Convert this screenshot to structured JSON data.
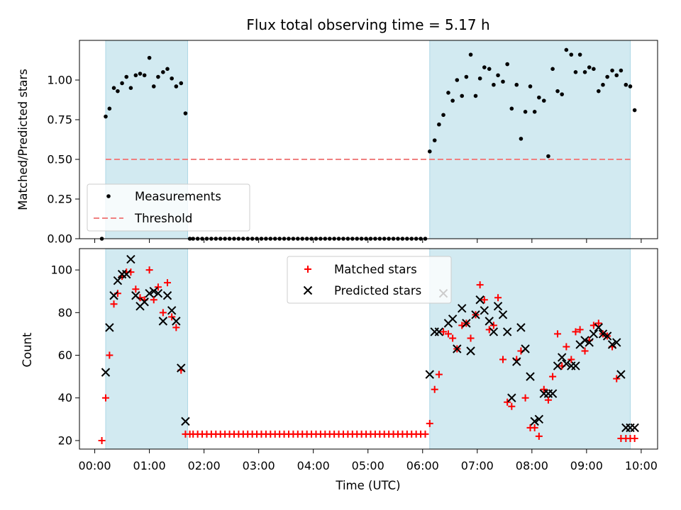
{
  "chart_data": {
    "type": "scatter",
    "title": "Flux total observing time = 5.17 h",
    "xlabel": "Time (UTC)",
    "x_unit": "hours UTC",
    "xlim": [
      -0.28,
      10.3
    ],
    "xticks": [
      0,
      1,
      2,
      3,
      4,
      5,
      6,
      7,
      8,
      9,
      10
    ],
    "xtick_labels": [
      "00:00",
      "01:00",
      "02:00",
      "03:00",
      "04:00",
      "05:00",
      "06:00",
      "07:00",
      "08:00",
      "09:00",
      "10:00"
    ],
    "shaded_intervals": [
      [
        0.2,
        1.7
      ],
      [
        6.13,
        9.8
      ]
    ],
    "shade_color": "#add8e6",
    "panels": [
      {
        "id": "ratio",
        "ylabel": "Matched/Predicted stars",
        "ylim": [
          0,
          1.25
        ],
        "yticks": [
          0.0,
          0.25,
          0.5,
          0.75,
          1.0
        ],
        "ytick_labels": [
          "0.00",
          "0.25",
          "0.50",
          "0.75",
          "1.00"
        ],
        "legend_position": "lower-left",
        "series": [
          {
            "name": "Measurements",
            "marker": "dot",
            "color": "#000000",
            "x": [
              0.13,
              0.2,
              0.27,
              0.35,
              0.42,
              0.5,
              0.58,
              0.66,
              0.75,
              0.83,
              0.91,
              1.0,
              1.08,
              1.16,
              1.25,
              1.33,
              1.41,
              1.49,
              1.58,
              1.66,
              1.74,
              6.13,
              6.22,
              6.3,
              6.38,
              6.47,
              6.55,
              6.63,
              6.72,
              6.8,
              6.88,
              6.97,
              7.05,
              7.13,
              7.22,
              7.3,
              7.38,
              7.47,
              7.55,
              7.63,
              7.72,
              7.8,
              7.88,
              7.97,
              8.05,
              8.13,
              8.22,
              8.3,
              8.38,
              8.47,
              8.55,
              8.63,
              8.72,
              8.8,
              8.88,
              8.97,
              9.05,
              9.13,
              9.22,
              9.3,
              9.38,
              9.47,
              9.55,
              9.63,
              9.72,
              9.8,
              9.88
            ],
            "y": [
              0.0,
              0.77,
              0.82,
              0.95,
              0.93,
              0.98,
              1.02,
              0.95,
              1.03,
              1.04,
              1.03,
              1.14,
              0.96,
              1.02,
              1.05,
              1.07,
              1.01,
              0.96,
              0.98,
              0.79,
              0.0,
              0.55,
              0.62,
              0.72,
              0.78,
              0.92,
              0.87,
              1.0,
              0.9,
              1.02,
              1.16,
              0.9,
              1.01,
              1.08,
              1.07,
              0.97,
              1.03,
              0.99,
              1.1,
              0.82,
              0.97,
              0.63,
              0.8,
              0.96,
              0.8,
              0.89,
              0.87,
              0.52,
              1.07,
              0.93,
              0.91,
              1.19,
              1.16,
              1.05,
              1.16,
              1.05,
              1.08,
              1.07,
              0.93,
              0.97,
              1.02,
              1.06,
              1.03,
              1.06,
              0.97,
              0.96,
              0.81
            ],
            "zero_run": {
              "from": 1.8,
              "to": 6.05,
              "step": 0.0833,
              "y": 0.0
            }
          },
          {
            "name": "Threshold",
            "marker": "dashed-line",
            "color": "#f08080",
            "x": [
              0.2,
              9.8
            ],
            "y": [
              0.5,
              0.5
            ]
          }
        ]
      },
      {
        "id": "count",
        "ylabel": "Count",
        "ylim": [
          16,
          110
        ],
        "yticks": [
          20,
          40,
          60,
          80,
          100
        ],
        "ytick_labels": [
          "20",
          "40",
          "60",
          "80",
          "100"
        ],
        "legend_position": "top-center",
        "series": [
          {
            "name": "Matched stars",
            "marker": "plus",
            "color": "#ff0000",
            "x": [
              0.13,
              0.2,
              0.27,
              0.35,
              0.42,
              0.5,
              0.58,
              0.66,
              0.75,
              0.83,
              0.91,
              1.0,
              1.08,
              1.16,
              1.25,
              1.33,
              1.41,
              1.49,
              1.58,
              1.66,
              1.74,
              6.13,
              6.22,
              6.3,
              6.38,
              6.47,
              6.55,
              6.63,
              6.72,
              6.8,
              6.88,
              6.97,
              7.05,
              7.13,
              7.22,
              7.3,
              7.38,
              7.47,
              7.55,
              7.63,
              7.72,
              7.8,
              7.88,
              7.97,
              8.05,
              8.13,
              8.22,
              8.3,
              8.38,
              8.47,
              8.55,
              8.63,
              8.72,
              8.8,
              8.88,
              8.97,
              9.05,
              9.13,
              9.22,
              9.3,
              9.38,
              9.47,
              9.55,
              9.63,
              9.72,
              9.8,
              9.88
            ],
            "y": [
              20,
              40,
              60,
              84,
              89,
              97,
              99,
              99,
              91,
              87,
              86,
              100,
              86,
              92,
              80,
              94,
              78,
              73,
              53,
              23,
              23,
              28,
              44,
              51,
              71,
              70,
              68,
              63,
              74,
              75,
              68,
              79,
              93,
              86,
              72,
              74,
              87,
              58,
              38,
              36,
              58,
              62,
              40,
              26,
              26,
              22,
              44,
              39,
              50,
              70,
              55,
              64,
              58,
              71,
              72,
              62,
              67,
              74,
              75,
              70,
              69,
              64,
              49,
              21,
              21,
              21,
              21
            ],
            "constant_run": {
              "from": 1.8,
              "to": 6.05,
              "step": 0.0833,
              "y": 23
            }
          },
          {
            "name": "Predicted stars",
            "marker": "x",
            "color": "#000000",
            "x": [
              0.2,
              0.27,
              0.35,
              0.42,
              0.5,
              0.58,
              0.66,
              0.75,
              0.83,
              0.91,
              1.0,
              1.08,
              1.16,
              1.25,
              1.33,
              1.41,
              1.49,
              1.58,
              1.66,
              6.13,
              6.22,
              6.3,
              6.38,
              6.47,
              6.55,
              6.63,
              6.72,
              6.8,
              6.88,
              6.97,
              7.05,
              7.13,
              7.22,
              7.3,
              7.38,
              7.47,
              7.55,
              7.63,
              7.72,
              7.8,
              7.88,
              7.97,
              8.05,
              8.13,
              8.22,
              8.3,
              8.38,
              8.47,
              8.55,
              8.63,
              8.72,
              8.8,
              8.88,
              8.97,
              9.05,
              9.13,
              9.22,
              9.3,
              9.38,
              9.47,
              9.55,
              9.63,
              9.72,
              9.8,
              9.88
            ],
            "y": [
              52,
              73,
              88,
              95,
              98,
              98,
              105,
              88,
              83,
              85,
              89,
              90,
              89,
              76,
              88,
              81,
              76,
              54,
              29,
              51,
              71,
              71,
              89,
              75,
              77,
              63,
              82,
              75,
              62,
              79,
              86,
              81,
              76,
              71,
              83,
              79,
              71,
              40,
              57,
              73,
              63,
              50,
              29,
              30,
              42,
              42,
              42,
              55,
              59,
              56,
              55,
              55,
              65,
              67,
              66,
              70,
              73,
              70,
              69,
              65,
              66,
              51,
              26,
              26,
              26
            ]
          }
        ]
      }
    ]
  }
}
